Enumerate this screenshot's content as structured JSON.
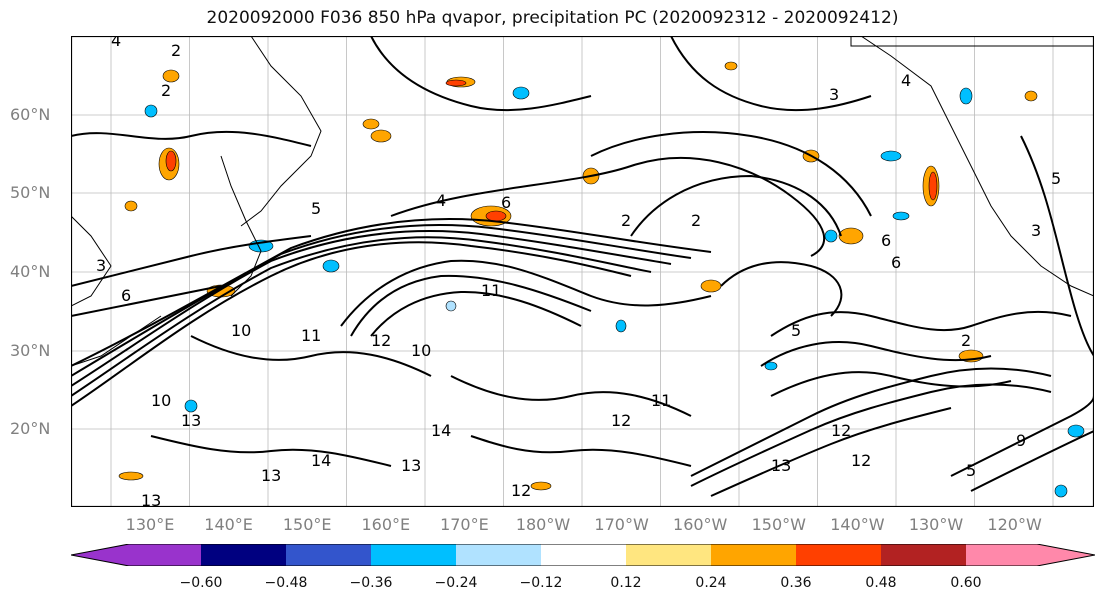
{
  "title": "2020092000 F036 850 hPa qvapor, precipitation PC (2020092312 - 2020092412)",
  "lat_labels": [
    "60°N",
    "50°N",
    "40°N",
    "30°N",
    "20°N"
  ],
  "lon_labels": [
    "130°E",
    "140°E",
    "150°E",
    "160°E",
    "170°E",
    "180°W",
    "170°W",
    "160°W",
    "150°W",
    "140°W",
    "130°W",
    "120°W"
  ],
  "contour_labels": [
    "4",
    "2",
    "2",
    "2",
    "3",
    "4",
    "5",
    "4",
    "6",
    "2",
    "6",
    "6",
    "5",
    "3",
    "3",
    "5",
    "6",
    "10",
    "11",
    "11",
    "12",
    "10",
    "13",
    "14",
    "13",
    "12",
    "13",
    "13",
    "11",
    "12",
    "12",
    "13",
    "12",
    "14",
    "10",
    "2",
    "5",
    "9"
  ],
  "colorbar": {
    "colors": [
      "#9933cc",
      "#000080",
      "#3355cc",
      "#00bfff",
      "#b0e2ff",
      "#ffffff",
      "#ffe680",
      "#ffa500",
      "#ff4000",
      "#b22222",
      "#ff88aa"
    ],
    "ticks": [
      "−0.60",
      "−0.48",
      "−0.36",
      "−0.24",
      "−0.12",
      "0.12",
      "0.24",
      "0.36",
      "0.48",
      "0.60"
    ]
  }
}
